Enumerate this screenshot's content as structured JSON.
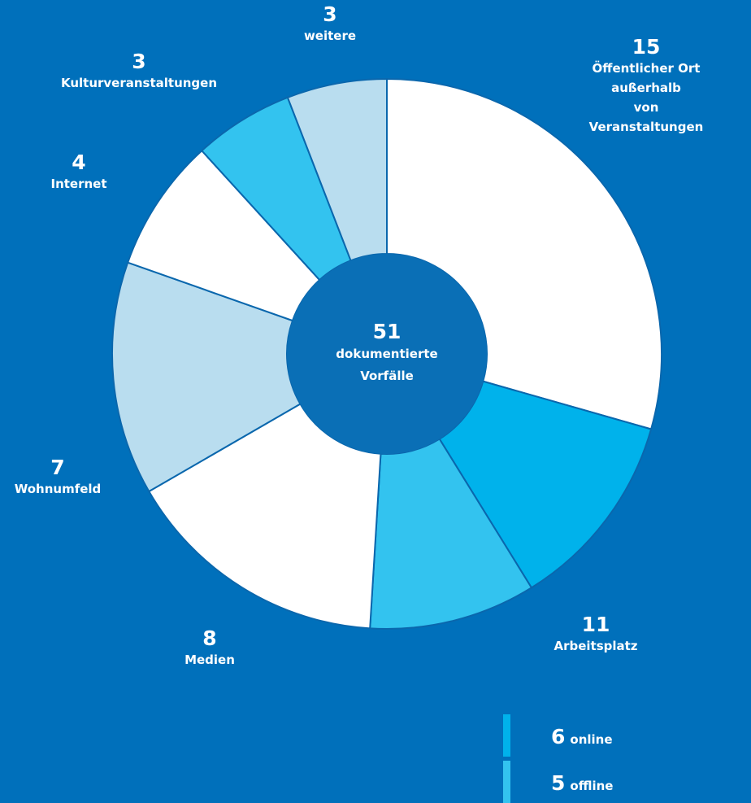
{
  "chart_data": {
    "type": "donut",
    "total": 51,
    "total_label": "dokumentierte\nVorfälle",
    "slices": [
      {
        "label": "Öffentlicher Ort außerhalb\nvon Veranstaltungen",
        "value": 15,
        "color": "#ffffff"
      },
      {
        "label": "Arbeitsplatz",
        "value": 11,
        "parts": [
          {
            "name": "online",
            "value": 6,
            "color": "#00b2eb"
          },
          {
            "name": "offline",
            "value": 5,
            "color": "#33c3ef"
          }
        ]
      },
      {
        "label": "Medien",
        "value": 8,
        "color": "#ffffff"
      },
      {
        "label": "Wohnumfeld",
        "value": 7,
        "color": "#b9ddef"
      },
      {
        "label": "Internet",
        "value": 4,
        "color": "#ffffff"
      },
      {
        "label": "Kulturveranstaltungen",
        "value": 3,
        "color": "#33c3ef"
      },
      {
        "label": "weitere",
        "value": 3,
        "color": "#b9ddef"
      }
    ]
  }
}
